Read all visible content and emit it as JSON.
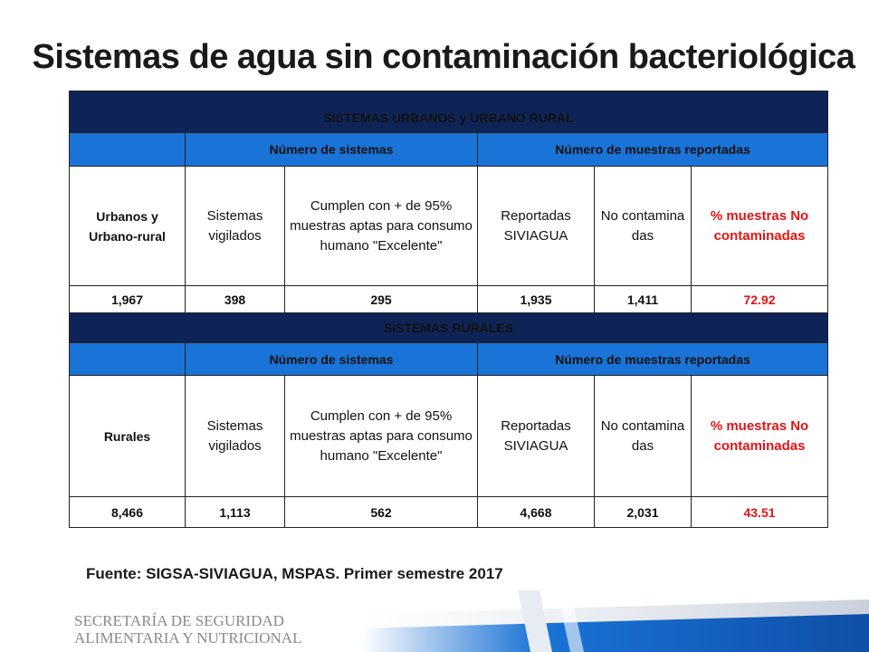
{
  "title": "Sistemas de agua sin contaminación bacteriológica",
  "sections": [
    {
      "header": "SISTEMAS URBANOS y URBANO RURAL",
      "subheader_systems": "Número de sistemas",
      "subheader_samples": "Número de muestras reportadas",
      "col_labels": [
        "Urbanos y Urbano-rural",
        "Sistemas vigilados",
        "Cumplen con + de 95% muestras aptas para consumo humano \"Excelente\"",
        "Reportadas SIVIAGUA",
        "No contamina das",
        "% muestras No contaminadas"
      ],
      "values": [
        "1,967",
        "398",
        "295",
        "1,935",
        "1,411",
        "72.92"
      ]
    },
    {
      "header": "SISTEMAS RURALES",
      "subheader_systems": "Número de sistemas",
      "subheader_samples": "Número de muestras reportadas",
      "col_labels": [
        "Rurales",
        "Sistemas vigilados",
        "Cumplen con + de 95% muestras aptas para consumo humano \"Excelente\"",
        "Reportadas SIVIAGUA",
        "No contamina das",
        "% muestras No contaminadas"
      ],
      "values": [
        "8,466",
        "1,113",
        "562",
        "4,668",
        "2,031",
        "43.51"
      ]
    }
  ],
  "source": "Fuente: SIGSA-SIVIAGUA, MSPAS. Primer semestre 2017",
  "logo": {
    "line1": "SECRETARÍA DE SEGURIDAD",
    "line2": "ALIMENTARIA Y NUTRICIONAL"
  },
  "colors": {
    "navy": "#0f2456",
    "blue": "#1a73d6",
    "red": "#e01515"
  }
}
